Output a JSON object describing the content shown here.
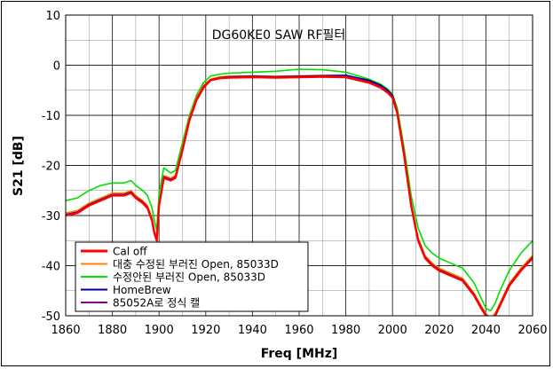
{
  "chart_data": {
    "type": "line",
    "title": "DG60KE0 SAW RF필터",
    "xlabel": "Freq [MHz]",
    "ylabel": "S21 [dB]",
    "xlim": [
      1860,
      2060
    ],
    "ylim": [
      -50,
      10
    ],
    "xticks": [
      "1860",
      "1880",
      "1900",
      "1920",
      "1940",
      "1960",
      "1980",
      "2000",
      "2020",
      "2040",
      "2060"
    ],
    "yticks": [
      "10",
      "0",
      "-10",
      "-20",
      "-30",
      "-40",
      "-50"
    ],
    "grid": true,
    "legend_position": "bottom-left",
    "series": [
      {
        "name": "Cal off",
        "color": "#ff0000",
        "x": [
          1860,
          1865,
          1870,
          1875,
          1880,
          1885,
          1888,
          1890,
          1893,
          1895,
          1897,
          1898,
          1899,
          1900,
          1902,
          1905,
          1907,
          1910,
          1913,
          1916,
          1919,
          1922,
          1926,
          1930,
          1940,
          1950,
          1960,
          1970,
          1980,
          1990,
          1995,
          1998,
          2000,
          2002,
          2005,
          2008,
          2011,
          2014,
          2017,
          2020,
          2025,
          2030,
          2035,
          2038,
          2040,
          2042,
          2044,
          2046,
          2050,
          2055,
          2060
        ],
        "values": [
          -30,
          -29.5,
          -28,
          -27,
          -26,
          -26,
          -25.5,
          -26.5,
          -27.5,
          -28.5,
          -31,
          -33.5,
          -35,
          -28,
          -22.5,
          -23,
          -22.5,
          -17,
          -11,
          -7,
          -4.5,
          -3,
          -2.6,
          -2.5,
          -2.4,
          -2.5,
          -2.4,
          -2.3,
          -2.4,
          -3.5,
          -4.5,
          -5.5,
          -6.5,
          -9.5,
          -18,
          -28,
          -35,
          -38.5,
          -40,
          -41,
          -42,
          -43,
          -46,
          -48.5,
          -50,
          -51,
          -50,
          -48,
          -44,
          -41,
          -38.5
        ]
      },
      {
        "name": "대충 수정된 부러진 Open, 85033D",
        "color": "#ff8000",
        "x": [
          1860,
          1865,
          1870,
          1875,
          1880,
          1885,
          1888,
          1890,
          1893,
          1895,
          1897,
          1898,
          1899,
          1900,
          1902,
          1905,
          1907,
          1910,
          1913,
          1916,
          1919,
          1922,
          1926,
          1930,
          1940,
          1950,
          1960,
          1970,
          1980,
          1990,
          1995,
          1998,
          2000,
          2002,
          2005,
          2008,
          2011,
          2014,
          2017,
          2020,
          2025,
          2030,
          2035,
          2038,
          2040,
          2042,
          2044,
          2046,
          2050,
          2055,
          2060
        ],
        "values": [
          -29.5,
          -29,
          -27.5,
          -26.5,
          -25.5,
          -25.5,
          -25,
          -26,
          -27,
          -28,
          -30.5,
          -33,
          -34.5,
          -27.5,
          -22,
          -22.5,
          -22,
          -16.5,
          -10.5,
          -6.5,
          -4,
          -2.8,
          -2.3,
          -2.2,
          -2.1,
          -2.2,
          -2.1,
          -2.0,
          -2.1,
          -3.2,
          -4.2,
          -5.2,
          -6.2,
          -9,
          -17.5,
          -27.5,
          -34.5,
          -38,
          -39.5,
          -40.5,
          -41.5,
          -42.5,
          -45.5,
          -48,
          -49.5,
          -50.5,
          -49.5,
          -47.5,
          -43.5,
          -40.5,
          -38
        ]
      },
      {
        "name": "수정안된 부러진 Open, 85033D",
        "color": "#00e000",
        "x": [
          1860,
          1865,
          1870,
          1875,
          1880,
          1885,
          1888,
          1890,
          1893,
          1895,
          1897,
          1898,
          1899,
          1900,
          1902,
          1905,
          1907,
          1910,
          1913,
          1916,
          1919,
          1922,
          1926,
          1930,
          1940,
          1950,
          1960,
          1970,
          1980,
          1990,
          1995,
          1998,
          2000,
          2002,
          2005,
          2008,
          2011,
          2014,
          2017,
          2020,
          2025,
          2030,
          2035,
          2038,
          2040,
          2042,
          2044,
          2046,
          2050,
          2055,
          2060
        ],
        "values": [
          -27,
          -26.5,
          -25,
          -24,
          -23.5,
          -23.5,
          -23,
          -24,
          -25,
          -26,
          -28.5,
          -31,
          -33,
          -25.5,
          -20.5,
          -21.5,
          -21,
          -15.5,
          -10,
          -6,
          -3.5,
          -2.2,
          -1.8,
          -1.6,
          -1.4,
          -1.2,
          -0.8,
          -0.9,
          -1.4,
          -2.8,
          -3.8,
          -4.8,
          -5.8,
          -8.5,
          -16.5,
          -26,
          -32.5,
          -36,
          -37.5,
          -38.5,
          -39.5,
          -40.5,
          -43.5,
          -46.5,
          -48.5,
          -49,
          -47.5,
          -45,
          -41,
          -37.5,
          -35
        ]
      },
      {
        "name": "HomeBrew",
        "color": "#0000a0",
        "x": [
          1860,
          1865,
          1870,
          1875,
          1880,
          1885,
          1888,
          1890,
          1893,
          1895,
          1897,
          1898,
          1899,
          1900,
          1902,
          1905,
          1907,
          1910,
          1913,
          1916,
          1919,
          1922,
          1926,
          1930,
          1940,
          1950,
          1960,
          1970,
          1980,
          1990,
          1995,
          1998,
          2000,
          2002,
          2005,
          2008,
          2011,
          2014,
          2017,
          2020,
          2025,
          2030,
          2035,
          2038,
          2040,
          2042,
          2044,
          2046,
          2050,
          2055,
          2060
        ],
        "values": [
          -29.8,
          -29.3,
          -27.8,
          -26.8,
          -25.8,
          -25.8,
          -25.3,
          -26.3,
          -27.3,
          -28.3,
          -30.8,
          -33.3,
          -34.8,
          -27.8,
          -22.3,
          -22.8,
          -22.3,
          -16.8,
          -10.8,
          -6.8,
          -4.3,
          -2.9,
          -2.5,
          -2.3,
          -2.2,
          -2.3,
          -2.2,
          -2.1,
          -2.0,
          -3.0,
          -4.0,
          -5.0,
          -6.0,
          -9.2,
          -17.8,
          -27.8,
          -34.8,
          -38.3,
          -39.8,
          -40.8,
          -41.8,
          -42.8,
          -45.8,
          -48.3,
          -49.8,
          -50.8,
          -49.8,
          -47.8,
          -43.8,
          -40.8,
          -38.3
        ]
      },
      {
        "name": "85052A로 정식 캘",
        "color": "#800080",
        "x": [
          1860,
          1865,
          1870,
          1875,
          1880,
          1885,
          1888,
          1890,
          1893,
          1895,
          1897,
          1898,
          1899,
          1900,
          1902,
          1905,
          1907,
          1910,
          1913,
          1916,
          1919,
          1922,
          1926,
          1930,
          1940,
          1950,
          1960,
          1970,
          1980,
          1990,
          1995,
          1998,
          2000,
          2002,
          2005,
          2008,
          2011,
          2014,
          2017,
          2020,
          2025,
          2030,
          2035,
          2038,
          2040,
          2042,
          2044,
          2046,
          2050,
          2055,
          2060
        ],
        "values": [
          -29.9,
          -29.4,
          -27.9,
          -26.9,
          -25.9,
          -25.9,
          -25.4,
          -26.4,
          -27.4,
          -28.4,
          -30.9,
          -33.4,
          -34.9,
          -27.9,
          -22.4,
          -22.9,
          -22.4,
          -16.9,
          -10.9,
          -6.9,
          -4.4,
          -2.9,
          -2.5,
          -2.4,
          -2.3,
          -2.4,
          -2.3,
          -2.2,
          -2.2,
          -3.3,
          -4.3,
          -5.3,
          -6.3,
          -9.3,
          -17.9,
          -27.9,
          -34.9,
          -38.4,
          -39.9,
          -40.9,
          -41.9,
          -42.9,
          -45.9,
          -48.4,
          -49.9,
          -50.9,
          -49.9,
          -47.9,
          -43.9,
          -40.9,
          -38.4
        ]
      }
    ]
  }
}
